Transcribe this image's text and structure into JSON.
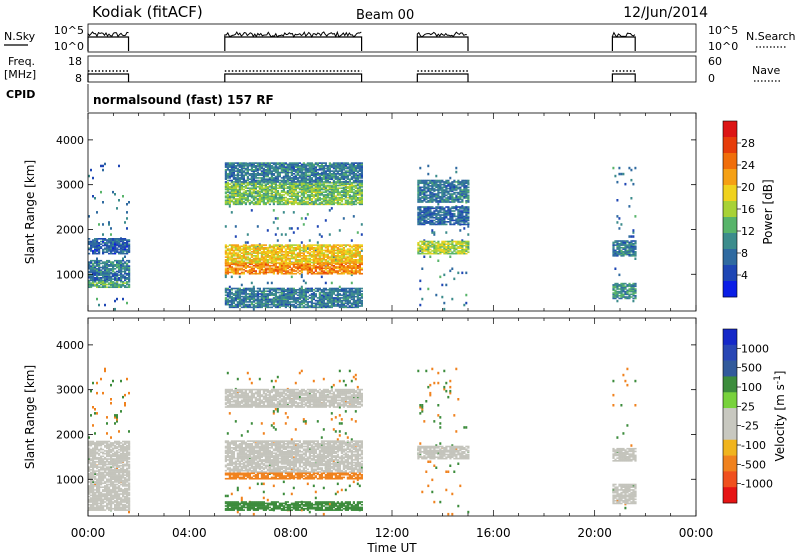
{
  "header": {
    "station": "Kodiak (fitACF)",
    "beam": "Beam 00",
    "date": "12/Jun/2014"
  },
  "left_labels": {
    "nsky": "N.Sky",
    "freq_line1": "Freq.",
    "freq_line2": "[MHz]",
    "cpid": "CPID"
  },
  "right_labels": {
    "nsearch": "N.Search",
    "nave": "Nave"
  },
  "cpid_text": "normalsound (fast) 157 RF",
  "colors": {
    "power": [
      "#0a1ee6",
      "#1e46b4",
      "#2f6aa0",
      "#3c8c8c",
      "#58b46a",
      "#a8d236",
      "#f0d21e",
      "#f5a014",
      "#f06e0a",
      "#e63c0a",
      "#dc1414"
    ],
    "velocity": [
      "#e61414",
      "#f0501e",
      "#f0821e",
      "#f0b41e",
      "#c8c8c0",
      "#c8c8c0",
      "#78d23c",
      "#3c8c3c",
      "#325a9b",
      "#2846b4",
      "#1428c8"
    ],
    "ground_scatter": "#c4c4bc"
  },
  "chart_data": [
    {
      "type": "line",
      "name": "noise panel",
      "left_axis": {
        "label": "N.Sky",
        "ticks": [
          "10^5",
          "10^0"
        ]
      },
      "right_axis": {
        "label": "N.Search",
        "ticks": [
          "10^5",
          "10^0"
        ]
      },
      "active_intervals_ut": [
        [
          0.0,
          1.6
        ],
        [
          5.4,
          10.8
        ],
        [
          13.0,
          15.0
        ],
        [
          20.7,
          21.6
        ]
      ]
    },
    {
      "type": "line",
      "name": "frequency and averages panel",
      "left_axis": {
        "label": "Freq. [MHz]",
        "ticks": [
          "18",
          "8"
        ]
      },
      "right_axis": {
        "label": "Nave",
        "ticks": [
          "60",
          "0"
        ]
      },
      "active_intervals_ut": [
        [
          0.0,
          1.6
        ],
        [
          5.4,
          10.8
        ],
        [
          13.0,
          15.0
        ],
        [
          20.7,
          21.6
        ]
      ]
    },
    {
      "type": "heatmap",
      "name": "power range-time",
      "ylabel": "Slant Range [km]",
      "yticks": [
        "1000",
        "2000",
        "3000",
        "4000"
      ],
      "ylim": [
        180,
        4600
      ],
      "xlim_hours": [
        0,
        24
      ],
      "colorbar": {
        "label": "Power [dB]",
        "ticks": [
          "4",
          "8",
          "12",
          "16",
          "20",
          "24",
          "28"
        ],
        "range": [
          0,
          32
        ]
      },
      "blocks": [
        {
          "t": [
            0.0,
            1.6
          ],
          "bands": [
            [
              700,
              850,
              12
            ],
            [
              850,
              1050,
              6
            ],
            [
              1050,
              1300,
              8
            ],
            [
              1450,
              1800,
              5
            ]
          ]
        },
        {
          "t": [
            5.4,
            10.8
          ],
          "bands": [
            [
              250,
              700,
              8
            ],
            [
              1000,
              1250,
              24
            ],
            [
              1250,
              1650,
              20
            ],
            [
              2550,
              3050,
              14
            ],
            [
              3050,
              3500,
              8
            ]
          ]
        },
        {
          "t": [
            13.0,
            15.0
          ],
          "bands": [
            [
              1450,
              1750,
              16
            ],
            [
              2100,
              2500,
              6
            ],
            [
              2600,
              3100,
              8
            ]
          ]
        },
        {
          "t": [
            20.7,
            21.6
          ],
          "bands": [
            [
              450,
              800,
              10
            ],
            [
              1400,
              1750,
              8
            ]
          ]
        }
      ]
    },
    {
      "type": "heatmap",
      "name": "velocity range-time",
      "xlabel": "Time UT",
      "ylabel": "Slant Range [km]",
      "xticks": [
        "00:00",
        "04:00",
        "08:00",
        "12:00",
        "16:00",
        "20:00",
        "00:00"
      ],
      "yticks": [
        "1000",
        "2000",
        "3000",
        "4000"
      ],
      "ylim": [
        180,
        4600
      ],
      "xlim_hours": [
        0,
        24
      ],
      "colorbar": {
        "label": "Velocity [m s^-1]",
        "ticks": [
          "-1000",
          "-500",
          "-100",
          "-25",
          "25",
          "100",
          "500",
          "1000"
        ]
      },
      "blocks": [
        {
          "t": [
            0.0,
            1.6
          ],
          "bands": [
            [
              300,
              1850,
              "gs"
            ]
          ]
        },
        {
          "t": [
            5.4,
            10.8
          ],
          "bands": [
            [
              1150,
              1850,
              "gs"
            ],
            [
              2600,
              3000,
              "gs"
            ],
            [
              1000,
              1150,
              -120
            ],
            [
              300,
              500,
              150
            ]
          ]
        },
        {
          "t": [
            13.0,
            15.0
          ],
          "bands": [
            [
              1450,
              1750,
              "gs"
            ]
          ]
        },
        {
          "t": [
            20.7,
            21.6
          ],
          "bands": [
            [
              450,
              900,
              "gs"
            ],
            [
              1400,
              1700,
              "gs"
            ]
          ]
        }
      ]
    }
  ]
}
